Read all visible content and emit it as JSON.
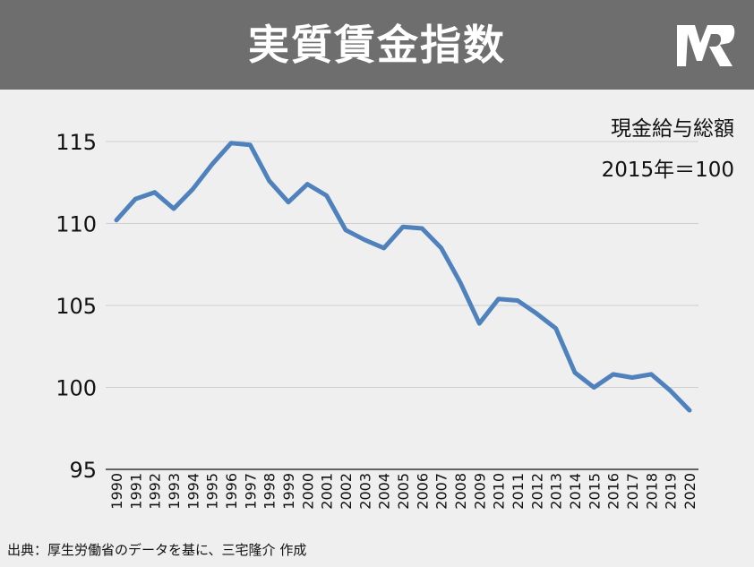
{
  "header": {
    "title": "実質賃金指数"
  },
  "colors": {
    "title_bar": "#6e6e6e",
    "background": "#efefef",
    "line": "#4f81bd"
  },
  "icons": {
    "logo": "mr-logo"
  },
  "notes": {
    "line1": "現金給与総額",
    "line2": "2015年＝100"
  },
  "source": "出典：厚生労働省のデータを基に、三宅隆介 作成",
  "chart_data": {
    "type": "line",
    "title": "実質賃金指数",
    "xlabel": "",
    "ylabel": "",
    "ylim": [
      95,
      116
    ],
    "yticks": [
      95,
      100,
      105,
      110,
      115
    ],
    "grid": true,
    "legend": "none",
    "categories": [
      "1990",
      "1991",
      "1992",
      "1993",
      "1994",
      "1995",
      "1996",
      "1997",
      "1998",
      "1999",
      "2000",
      "2001",
      "2002",
      "2003",
      "2004",
      "2005",
      "2006",
      "2007",
      "2008",
      "2009",
      "2010",
      "2011",
      "2012",
      "2013",
      "2014",
      "2015",
      "2016",
      "2017",
      "2018",
      "2019",
      "2020"
    ],
    "series": [
      {
        "values": [
          110.2,
          111.5,
          111.9,
          110.9,
          112.1,
          113.6,
          114.9,
          114.8,
          112.6,
          111.3,
          112.4,
          111.7,
          109.6,
          109.0,
          108.5,
          109.8,
          109.7,
          108.5,
          106.4,
          103.9,
          105.4,
          105.3,
          104.5,
          103.6,
          100.9,
          100.0,
          100.8,
          100.6,
          100.8,
          99.8,
          98.6
        ]
      }
    ]
  }
}
